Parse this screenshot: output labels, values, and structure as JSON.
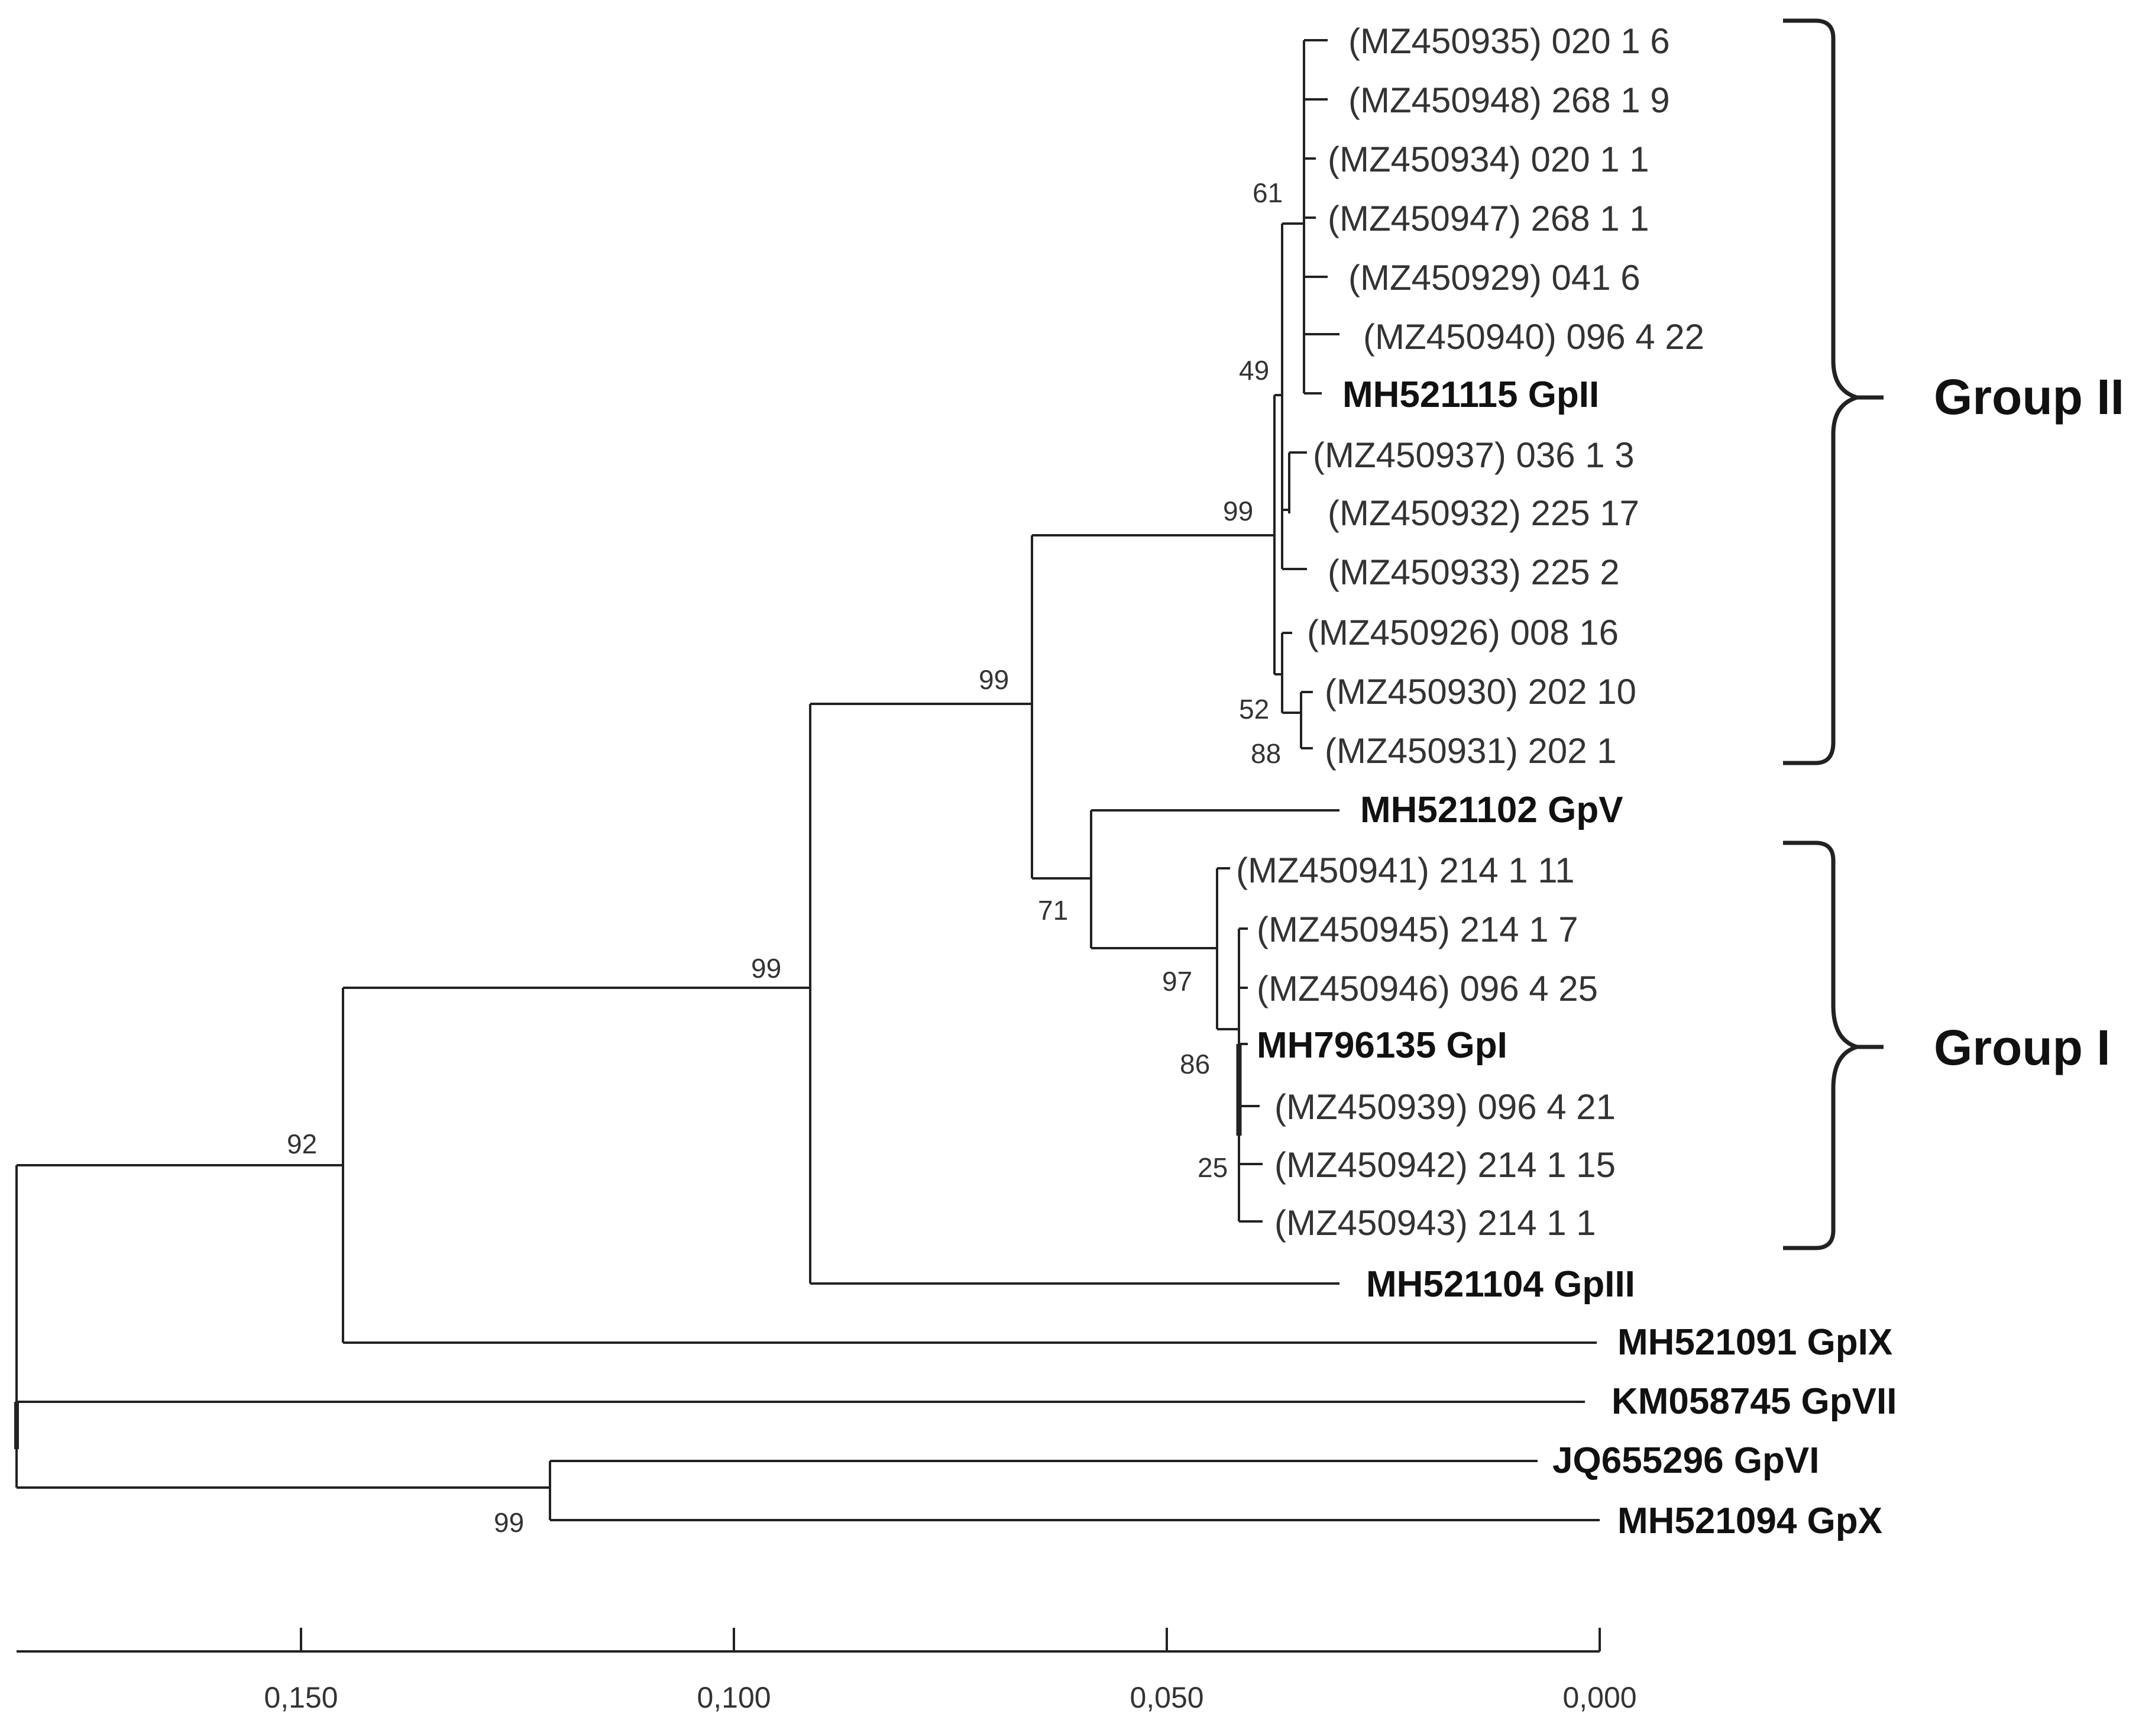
{
  "figure": {
    "tips": [
      {
        "id": "t1",
        "label": "(MZ450935) 020 1 6",
        "bold": false
      },
      {
        "id": "t2",
        "label": "(MZ450948) 268 1 9",
        "bold": false
      },
      {
        "id": "t3",
        "label": "(MZ450934) 020 1 1",
        "bold": false
      },
      {
        "id": "t4",
        "label": "(MZ450947) 268 1 1",
        "bold": false
      },
      {
        "id": "t5",
        "label": "(MZ450929) 041 6",
        "bold": false
      },
      {
        "id": "t6",
        "label": "(MZ450940) 096 4 22",
        "bold": false
      },
      {
        "id": "t7",
        "label": "MH521115 GpII",
        "bold": true
      },
      {
        "id": "t8",
        "label": "(MZ450937) 036 1 3",
        "bold": false
      },
      {
        "id": "t9",
        "label": "(MZ450932) 225 17",
        "bold": false
      },
      {
        "id": "t10",
        "label": "(MZ450933) 225 2",
        "bold": false
      },
      {
        "id": "t11",
        "label": "(MZ450926) 008 16",
        "bold": false
      },
      {
        "id": "t12",
        "label": "(MZ450930) 202 10",
        "bold": false
      },
      {
        "id": "t13",
        "label": "(MZ450931) 202 1",
        "bold": false
      },
      {
        "id": "t14",
        "label": "MH521102 GpV",
        "bold": true
      },
      {
        "id": "t15",
        "label": "(MZ450941) 214 1 11",
        "bold": false
      },
      {
        "id": "t16",
        "label": "(MZ450945) 214 1 7",
        "bold": false
      },
      {
        "id": "t17",
        "label": "(MZ450946) 096 4 25",
        "bold": false
      },
      {
        "id": "t18",
        "label": "MH796135 GpI",
        "bold": true
      },
      {
        "id": "t19",
        "label": "(MZ450939) 096 4 21",
        "bold": false
      },
      {
        "id": "t20",
        "label": "(MZ450942) 214 1 15",
        "bold": false
      },
      {
        "id": "t21",
        "label": "(MZ450943) 214 1 1",
        "bold": false
      },
      {
        "id": "t22",
        "label": "MH521104 GpIII",
        "bold": true
      },
      {
        "id": "t23",
        "label": "MH521091 GpIX",
        "bold": true
      },
      {
        "id": "t24",
        "label": "KM058745 GpVII",
        "bold": true
      },
      {
        "id": "t25",
        "label": "JQ655296 GpVI",
        "bold": true
      },
      {
        "id": "t26",
        "label": "MH521094 GpX",
        "bold": true
      }
    ],
    "bootstrap": [
      {
        "node": "n61",
        "value": "61"
      },
      {
        "node": "n49",
        "value": "49"
      },
      {
        "node": "n99a",
        "value": "99"
      },
      {
        "node": "n52",
        "value": "52"
      },
      {
        "node": "n88",
        "value": "88"
      },
      {
        "node": "n99b",
        "value": "99"
      },
      {
        "node": "n71",
        "value": "71"
      },
      {
        "node": "n97",
        "value": "97"
      },
      {
        "node": "n86",
        "value": "86"
      },
      {
        "node": "n25",
        "value": "25"
      },
      {
        "node": "n99c",
        "value": "99"
      },
      {
        "node": "n92",
        "value": "92"
      },
      {
        "node": "n99d",
        "value": "99"
      }
    ],
    "groups": [
      {
        "id": "group-2",
        "label": "Group II"
      },
      {
        "id": "group-1",
        "label": "Group I"
      }
    ],
    "scale_axis": {
      "ticks": [
        {
          "value": 0.15,
          "label": "0,150"
        },
        {
          "value": 0.1,
          "label": "0,100"
        },
        {
          "value": 0.05,
          "label": "0,050"
        },
        {
          "value": 0.0,
          "label": "0,000"
        }
      ]
    },
    "colors": {
      "line": "#222222",
      "text": "#333333"
    }
  }
}
